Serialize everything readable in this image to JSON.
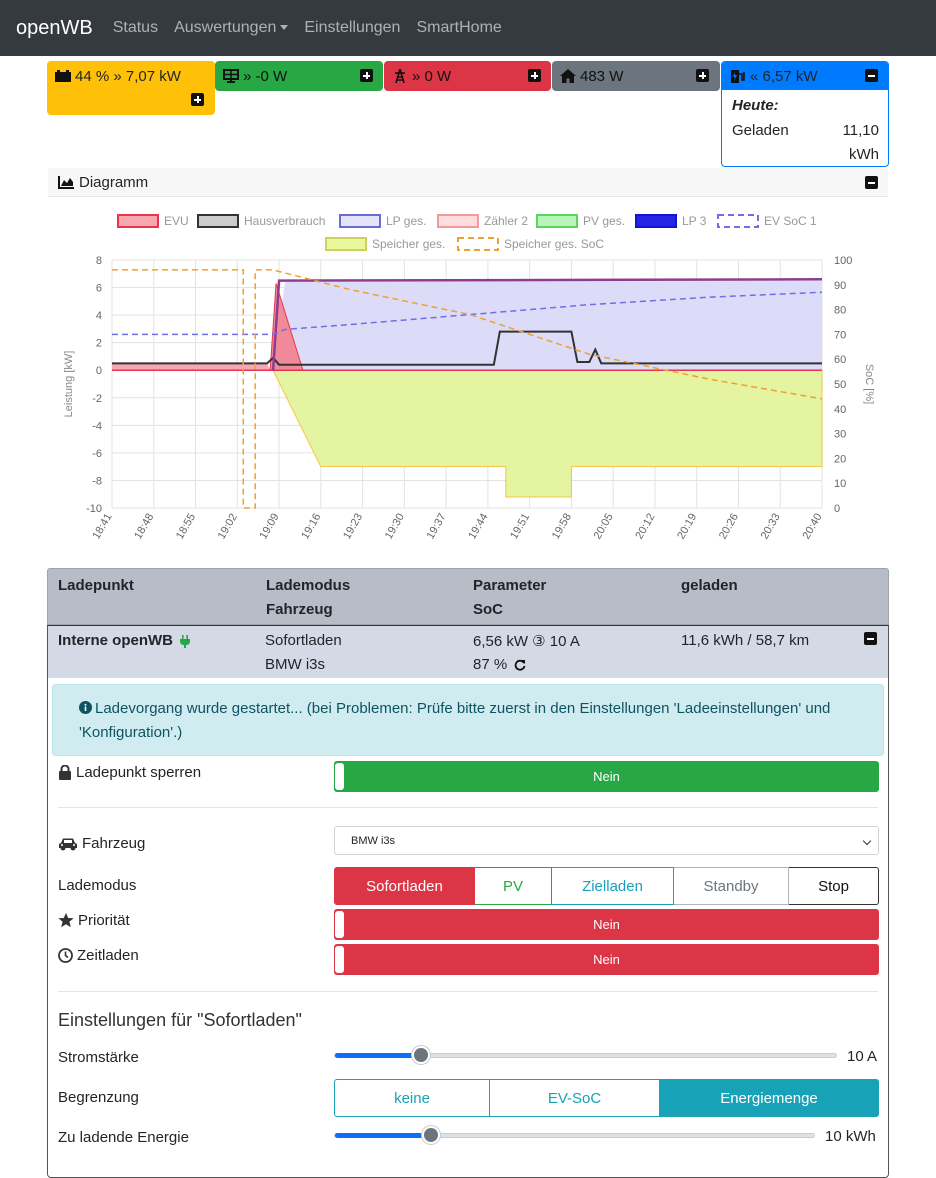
{
  "navbar": {
    "brand": "openWB",
    "items": [
      "Status",
      "Auswertungen",
      "Einstellungen",
      "SmartHome"
    ]
  },
  "tiles": {
    "battery": {
      "text": "44 % » 7,07 kW",
      "color": "#ffc107"
    },
    "pv": {
      "text": "» -0 W",
      "color": "#28a745"
    },
    "grid": {
      "text": "» 0 W",
      "color": "#dc3545"
    },
    "house": {
      "text": "483 W",
      "color": "#6c757d"
    },
    "charge": {
      "text": "« 6,57 kW",
      "color": "#007bff",
      "today_label": "Heute:",
      "charged_label": "Geladen",
      "charged_value": "11,10",
      "charged_unit": "kWh"
    }
  },
  "diagram": {
    "title": "Diagramm"
  },
  "chart_data": {
    "type": "line",
    "legend": [
      "EVU",
      "Hausverbrauch",
      "LP ges.",
      "Zähler 2",
      "PV ges.",
      "LP 3",
      "EV SoC 1",
      "Speicher ges.",
      "Speicher ges. SoC"
    ],
    "ylabel": "Leistung [kW]",
    "y2label": "SoC [%]",
    "ylim": [
      -10,
      8
    ],
    "y2lim": [
      0,
      100
    ],
    "yticks": [
      "8",
      "6",
      "4",
      "2",
      "0",
      "-2",
      "-4",
      "-6",
      "-8",
      "-10"
    ],
    "y2ticks": [
      "100",
      "90",
      "80",
      "70",
      "60",
      "50",
      "40",
      "30",
      "20",
      "10",
      "0"
    ],
    "xticks": [
      "18:41",
      "18:48",
      "18:55",
      "19:02",
      "19:09",
      "19:16",
      "19:23",
      "19:30",
      "19:37",
      "19:44",
      "19:51",
      "19:58",
      "20:05",
      "20:12",
      "20:19",
      "20:26",
      "20:33",
      "20:40"
    ],
    "colors": {
      "evu": "#e8364f",
      "haus": "#333333",
      "lp": "#6b6bd6",
      "zaehler": "#f19aa0",
      "pv": "#5fd35f",
      "lp3": "#1515d0",
      "evsoc": "#6e6ee6",
      "speicher": "#d9f07a",
      "speichersoc": "#f0a030"
    }
  },
  "table": {
    "headers": {
      "ladepunkt": "Ladepunkt",
      "lademodus": "Lademodus",
      "fahrzeug": "Fahrzeug",
      "parameter": "Parameter",
      "soc": "SoC",
      "geladen": "geladen"
    },
    "row": {
      "name": "Interne openWB",
      "mode": "Sofortladen",
      "vehicle": "BMW i3s",
      "param": "6,56 kW ③ 10 A",
      "soc": "87 %",
      "charged": "11,6 kWh / 58,7 km"
    }
  },
  "alert": {
    "text": "Ladevorgang wurde gestartet... (bei Problemen: Prüfe bitte zuerst in den Einstellungen 'Ladeeinstellungen' und 'Konfiguration'.)"
  },
  "settings": {
    "lock_label": "Ladepunkt sperren",
    "lock_value": "Nein",
    "vehicle_label": "Fahrzeug",
    "vehicle_value": "BMW i3s",
    "mode_label": "Lademodus",
    "modes": [
      "Sofortladen",
      "PV",
      "Zielladen",
      "Standby",
      "Stop"
    ],
    "priority_label": "Priorität",
    "priority_value": "Nein",
    "timer_label": "Zeitladen",
    "timer_value": "Nein",
    "section_title": "Einstellungen für \"Sofortladen\"",
    "current_label": "Stromstärke",
    "current_value": "10 A",
    "current_fraction": 0.17,
    "limit_label": "Begrenzung",
    "limits": [
      "keine",
      "EV-SoC",
      "Energiemenge"
    ],
    "energy_label": "Zu ladende Energie",
    "energy_value": "10 kWh",
    "energy_fraction": 0.2
  }
}
